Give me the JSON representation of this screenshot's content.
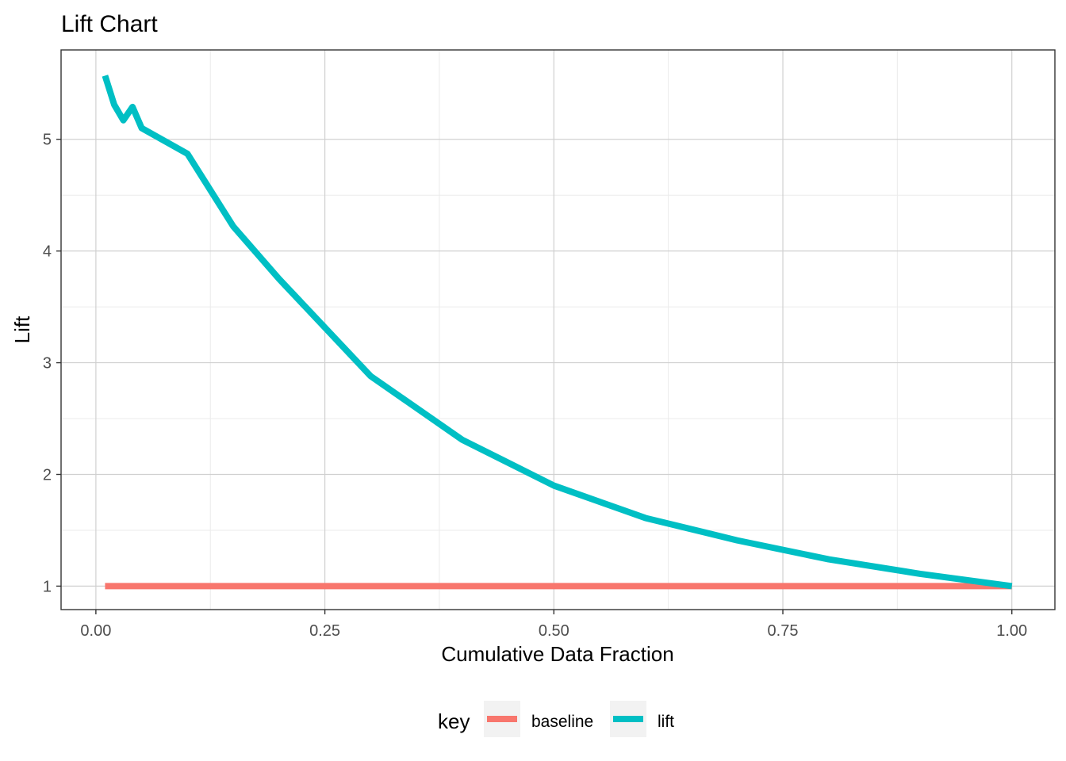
{
  "chart_data": {
    "type": "line",
    "title": "Lift Chart",
    "xlabel": "Cumulative Data Fraction",
    "ylabel": "Lift",
    "xlim": [
      -0.038,
      1.047
    ],
    "ylim": [
      0.79,
      5.8
    ],
    "x_ticks": [
      0.0,
      0.25,
      0.5,
      0.75,
      1.0
    ],
    "x_tick_labels": [
      "0.00",
      "0.25",
      "0.50",
      "0.75",
      "1.00"
    ],
    "y_ticks": [
      1,
      2,
      3,
      4,
      5
    ],
    "y_tick_labels": [
      "1",
      "2",
      "3",
      "4",
      "5"
    ],
    "grid": true,
    "legend": {
      "title": "key",
      "position": "bottom"
    },
    "series": [
      {
        "name": "baseline",
        "color": "#F8766D",
        "x": [
          0.01,
          1.0
        ],
        "y": [
          1.0,
          1.0
        ]
      },
      {
        "name": "lift",
        "color": "#00BFC4",
        "x": [
          0.01,
          0.02,
          0.03,
          0.04,
          0.05,
          0.1,
          0.15,
          0.2,
          0.3,
          0.4,
          0.5,
          0.6,
          0.7,
          0.8,
          0.9,
          1.0
        ],
        "y": [
          5.57,
          5.31,
          5.17,
          5.29,
          5.1,
          4.87,
          4.22,
          3.75,
          2.88,
          2.31,
          1.9,
          1.61,
          1.41,
          1.24,
          1.11,
          1.0
        ]
      }
    ]
  }
}
